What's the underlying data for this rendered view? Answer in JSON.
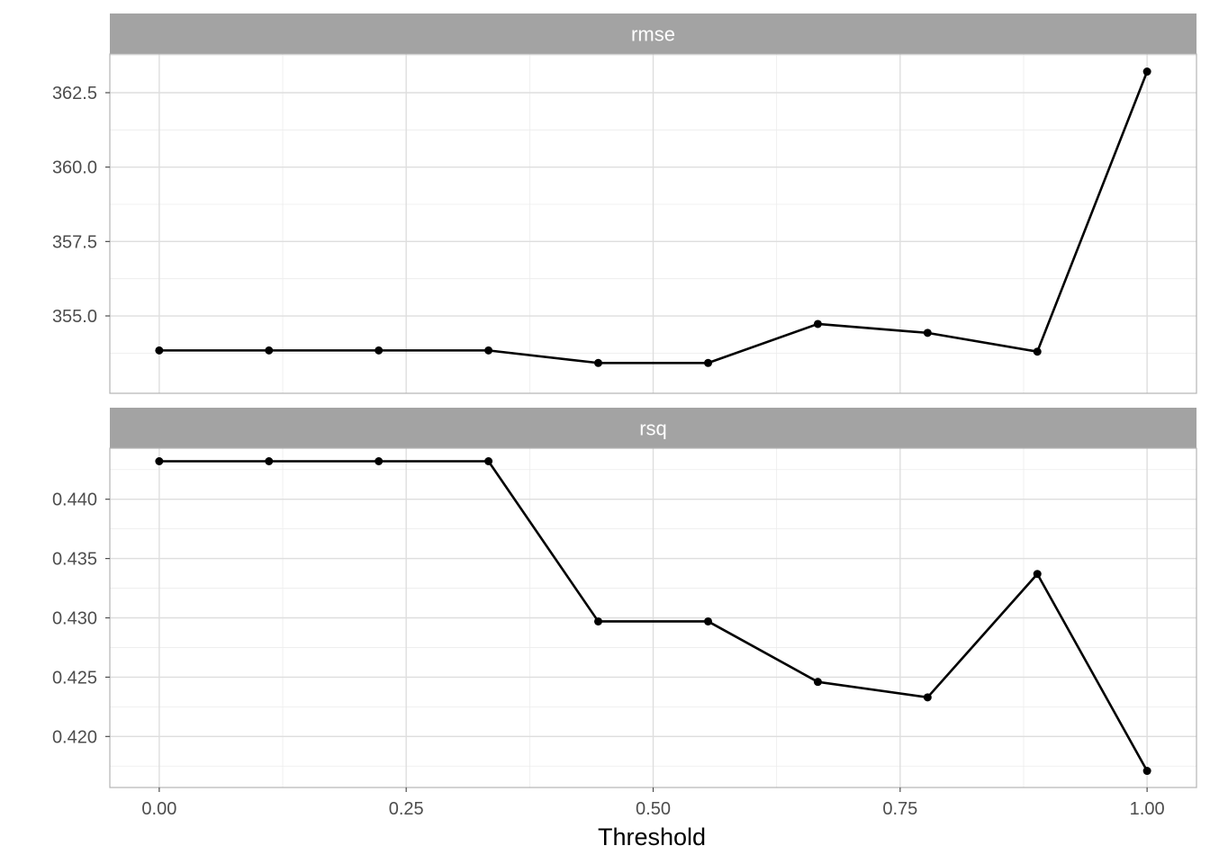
{
  "chart_data": {
    "type": "line",
    "layout": "faceted",
    "xlabel": "Threshold",
    "xlim": [
      -0.05,
      1.05
    ],
    "x_ticks": [
      0,
      0.25,
      0.5,
      0.75,
      1
    ],
    "x_tick_labels": [
      "0.00",
      "0.25",
      "0.50",
      "0.75",
      "1.00"
    ],
    "x": [
      0,
      0.1111,
      0.2222,
      0.3333,
      0.4444,
      0.5556,
      0.6667,
      0.7778,
      0.8889,
      1.0
    ],
    "grid": true,
    "panels": [
      {
        "strip_label": "rmse",
        "ylim": [
          352.4,
          363.8
        ],
        "y_ticks": [
          355.0,
          357.5,
          360.0,
          362.5
        ],
        "y_tick_labels": [
          "355.0",
          "357.5",
          "360.0",
          "362.5"
        ],
        "values": [
          353.84,
          353.84,
          353.84,
          353.84,
          353.42,
          353.42,
          354.73,
          354.43,
          353.8,
          363.21
        ]
      },
      {
        "strip_label": "rsq",
        "ylim": [
          0.4157,
          0.4443
        ],
        "y_ticks": [
          0.42,
          0.425,
          0.43,
          0.435,
          0.44
        ],
        "y_tick_labels": [
          "0.420",
          "0.425",
          "0.430",
          "0.435",
          "0.440"
        ],
        "values": [
          0.4432,
          0.4432,
          0.4432,
          0.4432,
          0.4297,
          0.4297,
          0.4246,
          0.4233,
          0.4337,
          0.4171
        ]
      }
    ]
  },
  "colors": {
    "strip_background": "#a3a3a3",
    "strip_text": "#ffffff",
    "line": "#000000",
    "point": "#000000",
    "grid": "#dedede"
  }
}
